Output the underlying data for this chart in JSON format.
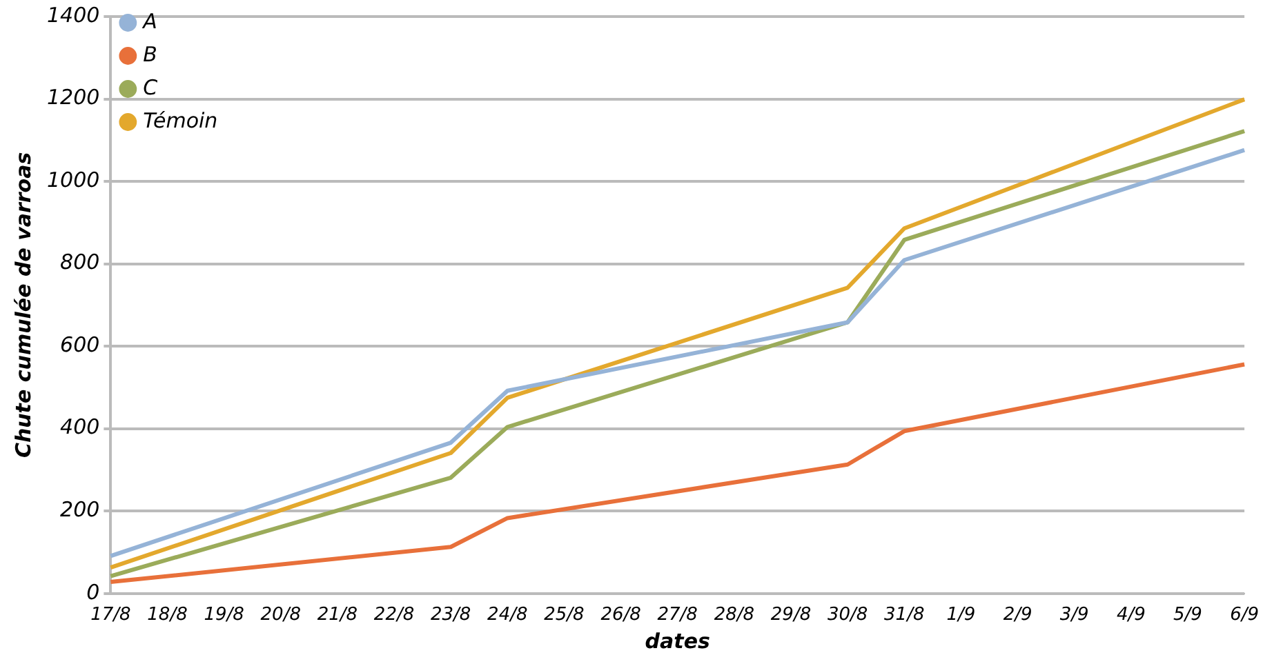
{
  "chart_data": {
    "type": "line",
    "xlabel": "dates",
    "ylabel": "Chute cumulée de varroas",
    "categories": [
      "17/8",
      "18/8",
      "19/8",
      "20/8",
      "21/8",
      "22/8",
      "23/8",
      "24/8",
      "25/8",
      "26/8",
      "27/8",
      "28/8",
      "29/8",
      "30/8",
      "31/8",
      "1/9",
      "2/9",
      "3/9",
      "4/9",
      "5/9",
      "6/9"
    ],
    "series": [
      {
        "name": "A",
        "color": "#95b3d7",
        "values": [
          91,
          null,
          null,
          null,
          null,
          null,
          366,
          492,
          null,
          null,
          null,
          null,
          null,
          658,
          809,
          null,
          null,
          null,
          null,
          null,
          1076
        ]
      },
      {
        "name": "B",
        "color": "#e8703a",
        "values": [
          28,
          null,
          null,
          null,
          null,
          null,
          113,
          183,
          null,
          null,
          null,
          null,
          null,
          313,
          394,
          null,
          null,
          null,
          null,
          null,
          556
        ]
      },
      {
        "name": "C",
        "color": "#9bab5a",
        "values": [
          42,
          null,
          null,
          null,
          null,
          null,
          281,
          404,
          null,
          null,
          null,
          null,
          null,
          658,
          858,
          null,
          null,
          null,
          null,
          null,
          1122
        ]
      },
      {
        "name": "Témoin",
        "color": "#e3a82d",
        "values": [
          63,
          null,
          null,
          null,
          null,
          null,
          341,
          475,
          null,
          null,
          null,
          null,
          null,
          742,
          886,
          null,
          null,
          null,
          null,
          null,
          1199
        ]
      }
    ],
    "ylim": [
      0,
      1400
    ],
    "yticks": [
      0,
      200,
      400,
      600,
      800,
      1000,
      1200,
      1400
    ],
    "grid": "y",
    "legend": "top left",
    "marker": "none",
    "line_style": "solid"
  }
}
